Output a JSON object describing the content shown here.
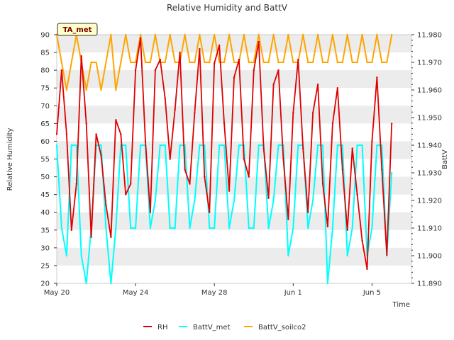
{
  "chart_data": {
    "type": "line",
    "title": "Relative Humidity and BattV",
    "badge": "TA_met",
    "xlabel": "Time",
    "ylabel_left": "Relative Humidity",
    "ylabel_right": "BattV",
    "x_range": [
      "2024-05-20",
      "2024-06-07"
    ],
    "x_ticks": [
      {
        "label": "May 20",
        "date": "2024-05-20"
      },
      {
        "label": "May 24",
        "date": "2024-05-24"
      },
      {
        "label": "May 28",
        "date": "2024-05-28"
      },
      {
        "label": "Jun 1",
        "date": "2024-06-01"
      },
      {
        "label": "Jun 5",
        "date": "2024-06-05"
      }
    ],
    "ylim_left": [
      20,
      90
    ],
    "yticks_left": [
      "20",
      "25",
      "30",
      "35",
      "40",
      "45",
      "50",
      "55",
      "60",
      "65",
      "70",
      "75",
      "80",
      "85",
      "90"
    ],
    "ylim_right": [
      11.89,
      11.98
    ],
    "yticks_right": [
      "11.890",
      "11.900",
      "11.910",
      "11.920",
      "11.930",
      "11.940",
      "11.950",
      "11.960",
      "11.970",
      "11.980"
    ],
    "grid": "horizontal alternating bands",
    "legend_position": "bottom-center",
    "colors": {
      "RH": "#e00000",
      "BattV_met": "#00ffff",
      "BattV_soilco2": "#ffa500",
      "band": "#ececec"
    },
    "series": [
      {
        "name": "RH",
        "axis": "left",
        "color": "#e00000",
        "x": [
          "2024-05-20",
          "2024-05-20 06:00",
          "2024-05-20 12:00",
          "2024-05-20 18:00",
          "2024-05-21",
          "2024-05-21 06:00",
          "2024-05-21 12:00",
          "2024-05-21 18:00",
          "2024-05-22",
          "2024-05-22 06:00",
          "2024-05-22 12:00",
          "2024-05-22 18:00",
          "2024-05-23",
          "2024-05-23 06:00",
          "2024-05-23 12:00",
          "2024-05-23 18:00",
          "2024-05-24",
          "2024-05-24 06:00",
          "2024-05-24 12:00",
          "2024-05-24 18:00",
          "2024-05-25",
          "2024-05-25 06:00",
          "2024-05-25 12:00",
          "2024-05-25 18:00",
          "2024-05-26",
          "2024-05-26 06:00",
          "2024-05-26 12:00",
          "2024-05-26 18:00",
          "2024-05-27",
          "2024-05-27 06:00",
          "2024-05-27 12:00",
          "2024-05-27 18:00",
          "2024-05-28",
          "2024-05-28 06:00",
          "2024-05-28 12:00",
          "2024-05-28 18:00",
          "2024-05-29",
          "2024-05-29 06:00",
          "2024-05-29 12:00",
          "2024-05-29 18:00",
          "2024-05-30",
          "2024-05-30 06:00",
          "2024-05-30 12:00",
          "2024-05-30 18:00",
          "2024-05-31",
          "2024-05-31 06:00",
          "2024-05-31 12:00",
          "2024-05-31 18:00",
          "2024-06-01",
          "2024-06-01 06:00",
          "2024-06-01 12:00",
          "2024-06-01 18:00",
          "2024-06-02",
          "2024-06-02 06:00",
          "2024-06-02 12:00",
          "2024-06-02 18:00",
          "2024-06-03",
          "2024-06-03 06:00",
          "2024-06-03 12:00",
          "2024-06-03 18:00",
          "2024-06-04",
          "2024-06-04 06:00",
          "2024-06-04 12:00",
          "2024-06-04 18:00",
          "2024-06-05",
          "2024-06-05 06:00",
          "2024-06-05 12:00",
          "2024-06-05 18:00",
          "2024-06-06"
        ],
        "values": [
          62,
          80,
          62,
          35,
          48,
          84,
          65,
          33,
          62,
          56,
          42,
          33,
          66,
          62,
          45,
          48,
          80,
          89,
          60,
          40,
          80,
          83,
          72,
          55,
          69,
          85,
          52,
          48,
          68,
          86,
          50,
          40,
          82,
          87,
          65,
          46,
          78,
          83,
          55,
          50,
          80,
          88,
          58,
          44,
          76,
          80,
          55,
          38,
          68,
          83,
          58,
          40,
          68,
          76,
          48,
          36,
          65,
          75,
          52,
          35,
          58,
          45,
          32,
          24,
          60,
          78,
          52,
          28,
          65
        ]
      },
      {
        "name": "BattV_met",
        "axis": "right",
        "color": "#00ffff",
        "x": [
          "2024-05-20",
          "2024-05-20 06:00",
          "2024-05-20 12:00",
          "2024-05-20 18:00",
          "2024-05-21",
          "2024-05-21 06:00",
          "2024-05-21 12:00",
          "2024-05-21 18:00",
          "2024-05-22",
          "2024-05-22 06:00",
          "2024-05-22 12:00",
          "2024-05-22 18:00",
          "2024-05-23",
          "2024-05-23 06:00",
          "2024-05-23 12:00",
          "2024-05-23 18:00",
          "2024-05-24",
          "2024-05-24 06:00",
          "2024-05-24 12:00",
          "2024-05-24 18:00",
          "2024-05-25",
          "2024-05-25 06:00",
          "2024-05-25 12:00",
          "2024-05-25 18:00",
          "2024-05-26",
          "2024-05-26 06:00",
          "2024-05-26 12:00",
          "2024-05-26 18:00",
          "2024-05-27",
          "2024-05-27 06:00",
          "2024-05-27 12:00",
          "2024-05-27 18:00",
          "2024-05-28",
          "2024-05-28 06:00",
          "2024-05-28 12:00",
          "2024-05-28 18:00",
          "2024-05-29",
          "2024-05-29 06:00",
          "2024-05-29 12:00",
          "2024-05-29 18:00",
          "2024-05-30",
          "2024-05-30 06:00",
          "2024-05-30 12:00",
          "2024-05-30 18:00",
          "2024-05-31",
          "2024-05-31 06:00",
          "2024-05-31 12:00",
          "2024-05-31 18:00",
          "2024-06-01",
          "2024-06-01 06:00",
          "2024-06-01 12:00",
          "2024-06-01 18:00",
          "2024-06-02",
          "2024-06-02 06:00",
          "2024-06-02 12:00",
          "2024-06-02 18:00",
          "2024-06-03",
          "2024-06-03 06:00",
          "2024-06-03 12:00",
          "2024-06-03 18:00",
          "2024-06-04",
          "2024-06-04 06:00",
          "2024-06-04 12:00",
          "2024-06-04 18:00",
          "2024-06-05",
          "2024-06-05 06:00",
          "2024-06-05 12:00",
          "2024-06-05 18:00",
          "2024-06-06"
        ],
        "values": [
          11.94,
          11.91,
          11.9,
          11.94,
          11.94,
          11.9,
          11.89,
          11.91,
          11.94,
          11.94,
          11.91,
          11.89,
          11.91,
          11.94,
          11.94,
          11.91,
          11.91,
          11.94,
          11.94,
          11.91,
          11.92,
          11.94,
          11.94,
          11.91,
          11.91,
          11.94,
          11.94,
          11.91,
          11.92,
          11.94,
          11.94,
          11.91,
          11.91,
          11.94,
          11.94,
          11.91,
          11.92,
          11.94,
          11.94,
          11.91,
          11.91,
          11.94,
          11.94,
          11.91,
          11.92,
          11.94,
          11.94,
          11.9,
          11.91,
          11.94,
          11.94,
          11.91,
          11.92,
          11.94,
          11.94,
          11.89,
          11.91,
          11.94,
          11.94,
          11.9,
          11.91,
          11.94,
          11.94,
          11.9,
          11.91,
          11.94,
          11.94,
          11.9,
          11.93
        ]
      },
      {
        "name": "BattV_soilco2",
        "axis": "right",
        "color": "#ffa500",
        "x": [
          "2024-05-20",
          "2024-05-20 06:00",
          "2024-05-20 12:00",
          "2024-05-20 18:00",
          "2024-05-21",
          "2024-05-21 06:00",
          "2024-05-21 12:00",
          "2024-05-21 18:00",
          "2024-05-22",
          "2024-05-22 06:00",
          "2024-05-22 12:00",
          "2024-05-22 18:00",
          "2024-05-23",
          "2024-05-23 06:00",
          "2024-05-23 12:00",
          "2024-05-23 18:00",
          "2024-05-24",
          "2024-05-24 06:00",
          "2024-05-24 12:00",
          "2024-05-24 18:00",
          "2024-05-25",
          "2024-05-25 06:00",
          "2024-05-25 12:00",
          "2024-05-25 18:00",
          "2024-05-26",
          "2024-05-26 06:00",
          "2024-05-26 12:00",
          "2024-05-26 18:00",
          "2024-05-27",
          "2024-05-27 06:00",
          "2024-05-27 12:00",
          "2024-05-27 18:00",
          "2024-05-28",
          "2024-05-28 06:00",
          "2024-05-28 12:00",
          "2024-05-28 18:00",
          "2024-05-29",
          "2024-05-29 06:00",
          "2024-05-29 12:00",
          "2024-05-29 18:00",
          "2024-05-30",
          "2024-05-30 06:00",
          "2024-05-30 12:00",
          "2024-05-30 18:00",
          "2024-05-31",
          "2024-05-31 06:00",
          "2024-05-31 12:00",
          "2024-05-31 18:00",
          "2024-06-01",
          "2024-06-01 06:00",
          "2024-06-01 12:00",
          "2024-06-01 18:00",
          "2024-06-02",
          "2024-06-02 06:00",
          "2024-06-02 12:00",
          "2024-06-02 18:00",
          "2024-06-03",
          "2024-06-03 06:00",
          "2024-06-03 12:00",
          "2024-06-03 18:00",
          "2024-06-04",
          "2024-06-04 06:00",
          "2024-06-04 12:00",
          "2024-06-04 18:00",
          "2024-06-05",
          "2024-06-05 06:00",
          "2024-06-05 12:00",
          "2024-06-05 18:00",
          "2024-06-06"
        ],
        "values": [
          11.98,
          11.97,
          11.96,
          11.97,
          11.98,
          11.97,
          11.96,
          11.97,
          11.97,
          11.96,
          11.97,
          11.98,
          11.96,
          11.97,
          11.98,
          11.97,
          11.97,
          11.98,
          11.97,
          11.97,
          11.98,
          11.97,
          11.97,
          11.98,
          11.97,
          11.97,
          11.98,
          11.97,
          11.97,
          11.98,
          11.97,
          11.97,
          11.98,
          11.97,
          11.97,
          11.98,
          11.97,
          11.97,
          11.98,
          11.97,
          11.97,
          11.98,
          11.97,
          11.97,
          11.98,
          11.97,
          11.97,
          11.98,
          11.97,
          11.97,
          11.98,
          11.97,
          11.97,
          11.98,
          11.97,
          11.97,
          11.98,
          11.97,
          11.97,
          11.98,
          11.97,
          11.97,
          11.98,
          11.97,
          11.97,
          11.98,
          11.97,
          11.97,
          11.98
        ]
      }
    ]
  }
}
